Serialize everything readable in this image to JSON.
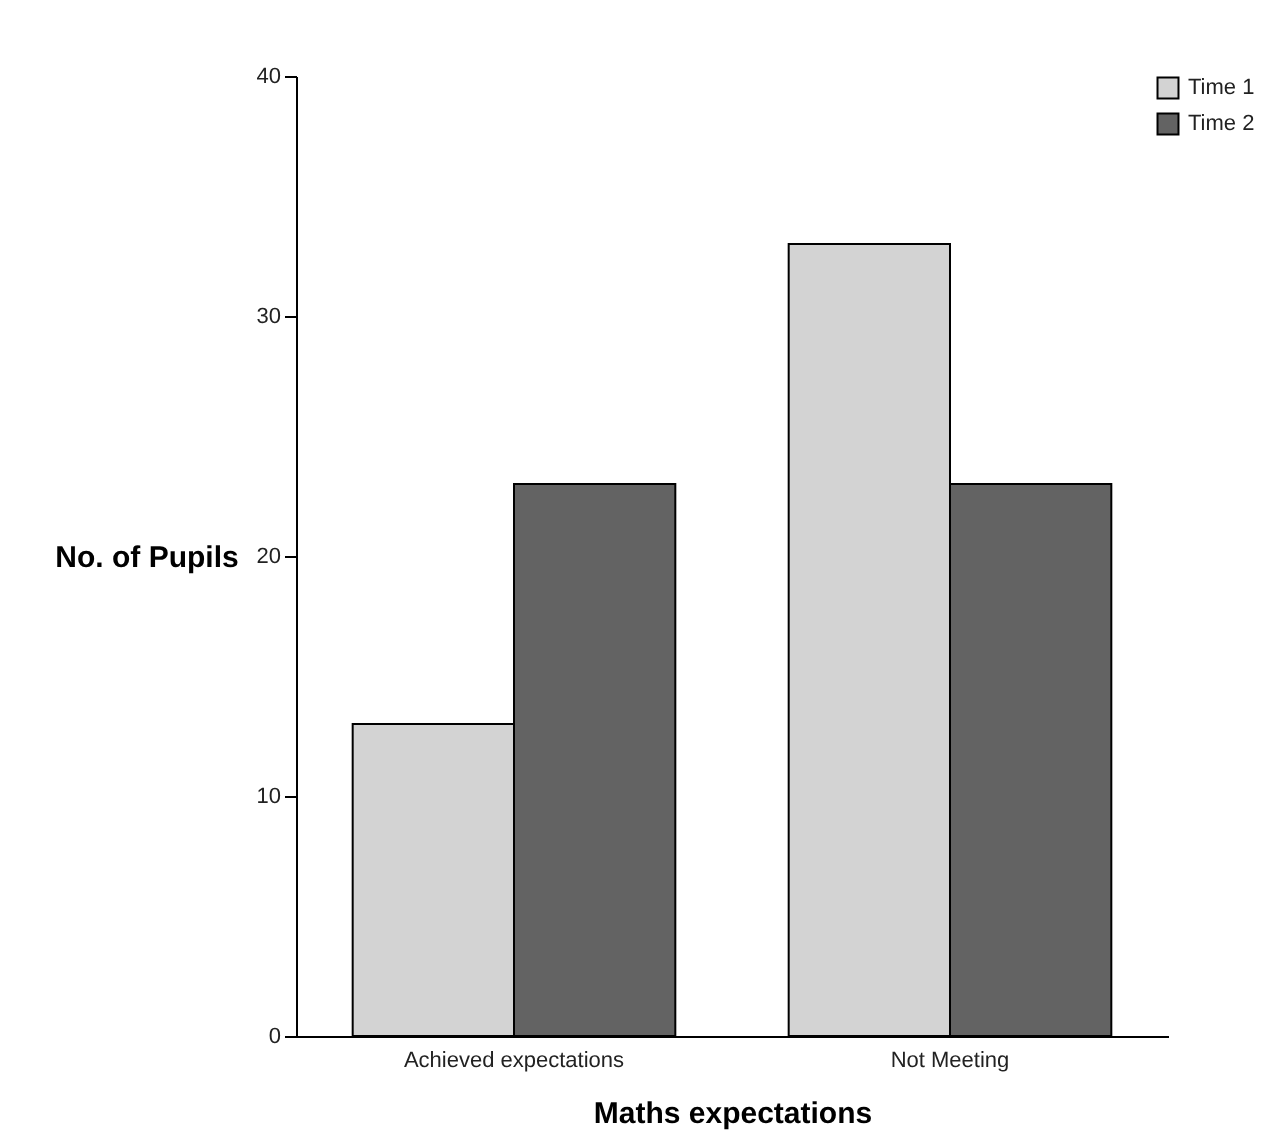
{
  "chart_data": {
    "type": "bar",
    "xlabel": "Maths expectations",
    "ylabel": "No. of Pupils",
    "categories": [
      "Achieved expectations",
      "Not Meeting"
    ],
    "series": [
      {
        "name": "Time 1",
        "color": "#d3d3d3",
        "values": [
          13,
          33
        ]
      },
      {
        "name": "Time 2",
        "color": "#636363",
        "values": [
          23,
          23
        ]
      }
    ],
    "ylim": [
      0,
      40
    ],
    "yticks": [
      0,
      10,
      20,
      30,
      40
    ],
    "legend": "top right"
  }
}
